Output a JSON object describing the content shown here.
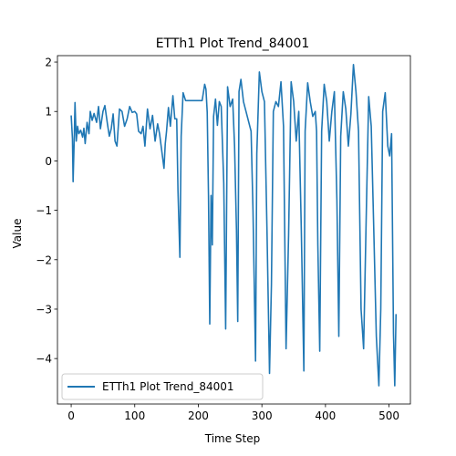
{
  "chart_data": {
    "type": "line",
    "title": "ETTh1 Plot Trend_84001",
    "xlabel": "Time Step",
    "ylabel": "Value",
    "xlim": [
      -21.6,
      533.6
    ],
    "ylim": [
      -4.92,
      2.13
    ],
    "xticks": [
      0,
      100,
      200,
      300,
      400,
      500
    ],
    "yticks": [
      -4,
      -3,
      -2,
      -1,
      0,
      1,
      2
    ],
    "grid": false,
    "legend_position": "lower-left",
    "series": [
      {
        "name": "ETTh1 Plot Trend_84001",
        "color": "#1f77b4",
        "points": [
          [
            0,
            0.92
          ],
          [
            2,
            0.45
          ],
          [
            3,
            -0.42
          ],
          [
            5,
            0.55
          ],
          [
            6,
            1.18
          ],
          [
            8,
            0.4
          ],
          [
            10,
            0.7
          ],
          [
            12,
            0.55
          ],
          [
            15,
            0.62
          ],
          [
            18,
            0.48
          ],
          [
            20,
            0.66
          ],
          [
            22,
            0.35
          ],
          [
            25,
            0.78
          ],
          [
            28,
            0.55
          ],
          [
            30,
            1.0
          ],
          [
            33,
            0.82
          ],
          [
            36,
            0.96
          ],
          [
            40,
            0.78
          ],
          [
            43,
            1.1
          ],
          [
            46,
            0.65
          ],
          [
            50,
            1.0
          ],
          [
            53,
            1.12
          ],
          [
            57,
            0.75
          ],
          [
            60,
            0.5
          ],
          [
            63,
            0.65
          ],
          [
            66,
            0.95
          ],
          [
            69,
            0.4
          ],
          [
            72,
            0.3
          ],
          [
            76,
            1.05
          ],
          [
            80,
            1.0
          ],
          [
            84,
            0.7
          ],
          [
            88,
            0.85
          ],
          [
            92,
            1.1
          ],
          [
            96,
            0.98
          ],
          [
            100,
            1.0
          ],
          [
            103,
            0.95
          ],
          [
            106,
            0.6
          ],
          [
            110,
            0.55
          ],
          [
            113,
            0.7
          ],
          [
            116,
            0.3
          ],
          [
            120,
            1.05
          ],
          [
            124,
            0.65
          ],
          [
            128,
            0.92
          ],
          [
            132,
            0.4
          ],
          [
            136,
            0.75
          ],
          [
            139,
            0.55
          ],
          [
            142,
            0.25
          ],
          [
            146,
            -0.15
          ],
          [
            148,
            0.35
          ],
          [
            150,
            0.6
          ],
          [
            153,
            1.08
          ],
          [
            156,
            0.7
          ],
          [
            160,
            1.32
          ],
          [
            163,
            0.85
          ],
          [
            166,
            0.85
          ],
          [
            168,
            -0.6
          ],
          [
            171,
            -1.95
          ],
          [
            173,
            0.5
          ],
          [
            176,
            1.38
          ],
          [
            180,
            1.22
          ],
          [
            185,
            1.22
          ],
          [
            190,
            1.22
          ],
          [
            196,
            1.22
          ],
          [
            200,
            1.22
          ],
          [
            206,
            1.22
          ],
          [
            210,
            1.55
          ],
          [
            212,
            1.45
          ],
          [
            214,
            0.98
          ],
          [
            216,
            -0.7
          ],
          [
            218,
            -3.3
          ],
          [
            220,
            -0.7
          ],
          [
            222,
            -1.7
          ],
          [
            224,
            0.9
          ],
          [
            227,
            1.25
          ],
          [
            230,
            0.72
          ],
          [
            233,
            1.2
          ],
          [
            236,
            1.1
          ],
          [
            240,
            -0.45
          ],
          [
            243,
            -3.4
          ],
          [
            246,
            1.5
          ],
          [
            250,
            1.1
          ],
          [
            254,
            1.25
          ],
          [
            257,
            0.3
          ],
          [
            260,
            -1.4
          ],
          [
            262,
            -3.25
          ],
          [
            264,
            1.4
          ],
          [
            267,
            1.65
          ],
          [
            271,
            1.2
          ],
          [
            275,
            1.0
          ],
          [
            279,
            0.8
          ],
          [
            283,
            0.6
          ],
          [
            286,
            -1.0
          ],
          [
            290,
            -4.05
          ],
          [
            292,
            0.15
          ],
          [
            296,
            1.8
          ],
          [
            300,
            1.4
          ],
          [
            304,
            1.2
          ],
          [
            308,
            -1.4
          ],
          [
            312,
            -4.3
          ],
          [
            315,
            -2.5
          ],
          [
            318,
            1.0
          ],
          [
            322,
            1.2
          ],
          [
            326,
            1.1
          ],
          [
            330,
            1.6
          ],
          [
            334,
            0.7
          ],
          [
            338,
            -3.8
          ],
          [
            342,
            -1.5
          ],
          [
            346,
            1.6
          ],
          [
            350,
            1.2
          ],
          [
            354,
            0.4
          ],
          [
            358,
            1.0
          ],
          [
            362,
            -1.4
          ],
          [
            366,
            -4.25
          ],
          [
            368,
            0.6
          ],
          [
            372,
            1.58
          ],
          [
            376,
            1.2
          ],
          [
            380,
            0.9
          ],
          [
            384,
            1.0
          ],
          [
            386,
            0.6
          ],
          [
            388,
            -1.7
          ],
          [
            391,
            -3.85
          ],
          [
            394,
            0.6
          ],
          [
            398,
            1.55
          ],
          [
            402,
            1.2
          ],
          [
            406,
            0.4
          ],
          [
            410,
            1.0
          ],
          [
            414,
            1.4
          ],
          [
            418,
            -0.8
          ],
          [
            421,
            -3.55
          ],
          [
            424,
            0.5
          ],
          [
            428,
            1.4
          ],
          [
            432,
            1.05
          ],
          [
            436,
            0.3
          ],
          [
            440,
            0.95
          ],
          [
            444,
            1.95
          ],
          [
            448,
            1.4
          ],
          [
            452,
            0.6
          ],
          [
            456,
            -3.0
          ],
          [
            460,
            -3.8
          ],
          [
            464,
            -1.2
          ],
          [
            468,
            1.3
          ],
          [
            472,
            0.7
          ],
          [
            476,
            -1.4
          ],
          [
            480,
            -3.55
          ],
          [
            484,
            -4.55
          ],
          [
            487,
            -3.0
          ],
          [
            490,
            1.0
          ],
          [
            494,
            1.38
          ],
          [
            498,
            0.3
          ],
          [
            501,
            0.1
          ],
          [
            504,
            0.55
          ],
          [
            507,
            -3.5
          ],
          [
            509,
            -4.55
          ],
          [
            511,
            -3.1
          ]
        ]
      }
    ]
  }
}
